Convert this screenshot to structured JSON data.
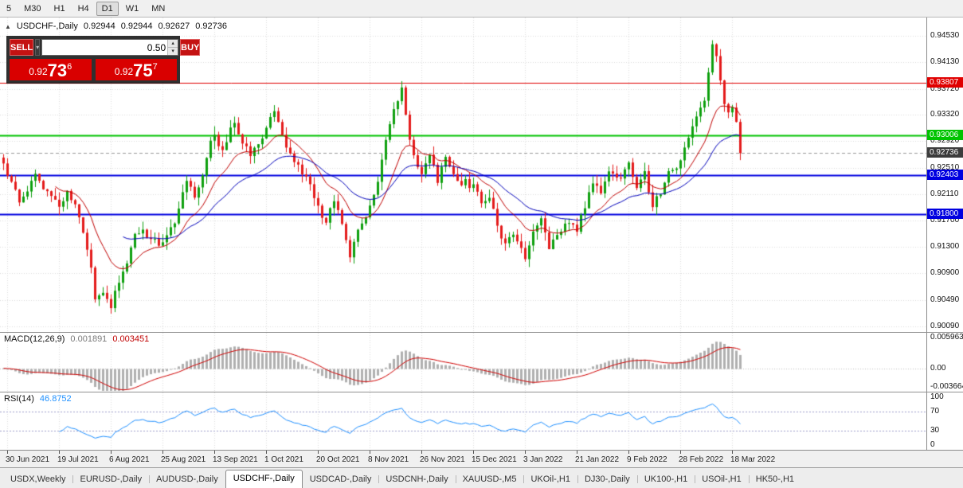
{
  "toolbar": {
    "items": [
      "5",
      "M30",
      "H1",
      "H4",
      "D1",
      "W1",
      "MN"
    ],
    "active": "D1"
  },
  "chart": {
    "collapse_icon": "▲",
    "symbol_title": "USDCHF-,Daily",
    "ohlc": {
      "open": "0.92944",
      "high": "0.92944",
      "low": "0.92627",
      "close": "0.92736"
    },
    "trade_panel": {
      "sell_label": "SELL",
      "buy_label": "BUY",
      "volume": "0.50",
      "sell_price": {
        "big": "0.92",
        "mid": "73",
        "sup": "6"
      },
      "buy_price": {
        "big": "0.92",
        "mid": "75",
        "sup": "7"
      }
    },
    "price_scale": [
      "0.94530",
      "0.94130",
      "0.93720",
      "0.93320",
      "0.92920",
      "0.92510",
      "0.92110",
      "0.91700",
      "0.91300",
      "0.90900",
      "0.90490",
      "0.90090"
    ],
    "levels": [
      {
        "price": 0.93807,
        "label": "0.93807",
        "color": "#e00000",
        "line_width": 1
      },
      {
        "price": 0.93006,
        "label": "0.93006",
        "color": "#00c400",
        "line_width": 2
      },
      {
        "price": 0.92403,
        "label": "0.92403",
        "color": "#0000e0",
        "line_width": 2
      },
      {
        "price": 0.918,
        "label": "0.91800",
        "color": "#0000e0",
        "line_width": 2
      }
    ],
    "bid_line": {
      "price": 0.92736,
      "label": "0.92736",
      "bg": "#3c3c3c"
    }
  },
  "macd": {
    "label": "MACD(12,26,9)",
    "main_value": "0.001891",
    "signal_value": "0.003451",
    "scale": [
      "0.005963",
      "0.00",
      "-0.003664"
    ]
  },
  "rsi": {
    "label": "RSI(14)",
    "value": "46.8752",
    "scale": [
      "100",
      "70",
      "30",
      "0"
    ]
  },
  "time_axis": {
    "labels": [
      "30 Jun 2021",
      "19 Jul 2021",
      "6 Aug 2021",
      "25 Aug 2021",
      "13 Sep 2021",
      "1 Oct 2021",
      "20 Oct 2021",
      "8 Nov 2021",
      "26 Nov 2021",
      "15 Dec 2021",
      "3 Jan 2022",
      "21 Jan 2022",
      "9 Feb 2022",
      "28 Feb 2022",
      "18 Mar 2022"
    ]
  },
  "tabs": [
    {
      "label": "USDX,Weekly",
      "active": false
    },
    {
      "label": "EURUSD-,Daily",
      "active": false
    },
    {
      "label": "AUDUSD-,Daily",
      "active": false
    },
    {
      "label": "USDCHF-,Daily",
      "active": true
    },
    {
      "label": "USDCAD-,Daily",
      "active": false
    },
    {
      "label": "USDCNH-,Daily",
      "active": false
    },
    {
      "label": "XAUUSD-,M5",
      "active": false
    },
    {
      "label": "UKOil-,H1",
      "active": false
    },
    {
      "label": "DJ30-,Daily",
      "active": false
    },
    {
      "label": "UK100-,H1",
      "active": false
    },
    {
      "label": "USOil-,H1",
      "active": false
    },
    {
      "label": "HK50-,H1",
      "active": false
    }
  ],
  "colors": {
    "bull": "#0fa00f",
    "bear": "#e41c1c",
    "grid": "#dcdcdc",
    "bid_line": "#9a9a9a",
    "macd_hist": "#b0b0b0",
    "macd_signal": "#d00000",
    "rsi_line": "#1E90FF",
    "rsi_level": "#a0a0cc",
    "accent_red": "#d90000"
  },
  "chart_data": {
    "type": "candlestick",
    "symbol": "USDCHF-,Daily",
    "candle_count": 186,
    "spacing": 5,
    "seed": 12345,
    "last_close": 0.92736,
    "price_range": [
      0.9,
      0.9481
    ],
    "noise": {
      "close": 0.0006,
      "wick": 0.0013
    },
    "tick_indices": [
      1,
      14,
      27,
      40,
      53,
      66,
      79,
      92,
      105,
      118,
      131,
      144,
      157,
      170,
      183
    ],
    "anchors": [
      [
        0,
        0.9252
      ],
      [
        2,
        0.923
      ],
      [
        4,
        0.9198
      ],
      [
        6,
        0.922
      ],
      [
        8,
        0.9236
      ],
      [
        11,
        0.921
      ],
      [
        14,
        0.919
      ],
      [
        16,
        0.9216
      ],
      [
        18,
        0.9192
      ],
      [
        20,
        0.915
      ],
      [
        22,
        0.9095
      ],
      [
        23,
        0.9048
      ],
      [
        25,
        0.9065
      ],
      [
        27,
        0.904
      ],
      [
        29,
        0.908
      ],
      [
        31,
        0.911
      ],
      [
        33,
        0.9145
      ],
      [
        35,
        0.916
      ],
      [
        37,
        0.914
      ],
      [
        40,
        0.9136
      ],
      [
        42,
        0.9155
      ],
      [
        44,
        0.9188
      ],
      [
        46,
        0.923
      ],
      [
        48,
        0.9206
      ],
      [
        50,
        0.9242
      ],
      [
        52,
        0.929
      ],
      [
        53,
        0.9304
      ],
      [
        55,
        0.9274
      ],
      [
        57,
        0.9308
      ],
      [
        58,
        0.9324
      ],
      [
        60,
        0.9292
      ],
      [
        62,
        0.927
      ],
      [
        64,
        0.9288
      ],
      [
        66,
        0.9314
      ],
      [
        68,
        0.9332
      ],
      [
        70,
        0.9304
      ],
      [
        72,
        0.9272
      ],
      [
        74,
        0.9256
      ],
      [
        76,
        0.9234
      ],
      [
        78,
        0.9208
      ],
      [
        79,
        0.919
      ],
      [
        81,
        0.9164
      ],
      [
        83,
        0.9204
      ],
      [
        85,
        0.916
      ],
      [
        87,
        0.912
      ],
      [
        89,
        0.9154
      ],
      [
        91,
        0.9174
      ],
      [
        92,
        0.9188
      ],
      [
        94,
        0.9224
      ],
      [
        96,
        0.9294
      ],
      [
        98,
        0.9344
      ],
      [
        100,
        0.9368
      ],
      [
        102,
        0.9298
      ],
      [
        104,
        0.9254
      ],
      [
        105,
        0.9244
      ],
      [
        107,
        0.9274
      ],
      [
        109,
        0.923
      ],
      [
        111,
        0.9264
      ],
      [
        113,
        0.924
      ],
      [
        115,
        0.923
      ],
      [
        118,
        0.9224
      ],
      [
        120,
        0.9194
      ],
      [
        122,
        0.921
      ],
      [
        124,
        0.9164
      ],
      [
        126,
        0.9134
      ],
      [
        128,
        0.9154
      ],
      [
        131,
        0.9114
      ],
      [
        133,
        0.9148
      ],
      [
        135,
        0.917
      ],
      [
        137,
        0.9128
      ],
      [
        139,
        0.9144
      ],
      [
        141,
        0.9164
      ],
      [
        144,
        0.9158
      ],
      [
        146,
        0.919
      ],
      [
        148,
        0.923
      ],
      [
        150,
        0.9218
      ],
      [
        152,
        0.925
      ],
      [
        154,
        0.9234
      ],
      [
        157,
        0.9254
      ],
      [
        159,
        0.922
      ],
      [
        161,
        0.9244
      ],
      [
        163,
        0.919
      ],
      [
        165,
        0.9214
      ],
      [
        167,
        0.9244
      ],
      [
        170,
        0.926
      ],
      [
        172,
        0.9294
      ],
      [
        174,
        0.9326
      ],
      [
        176,
        0.9358
      ],
      [
        177,
        0.9394
      ],
      [
        178,
        0.9444
      ],
      [
        179,
        0.9426
      ],
      [
        180,
        0.9384
      ],
      [
        181,
        0.9354
      ],
      [
        182,
        0.9334
      ],
      [
        183,
        0.9346
      ],
      [
        184,
        0.9316
      ],
      [
        185,
        0.92736
      ]
    ],
    "overlays": {
      "ma_fast": {
        "period": 13,
        "color": "#c00000"
      },
      "ma_slow": {
        "period": 30,
        "color": "#0000bb"
      }
    },
    "indicators": {
      "macd": {
        "fast": 12,
        "slow": 26,
        "signal": 9,
        "scale_max": 0.005963,
        "scale_min": -0.003664
      },
      "rsi": {
        "period": 14,
        "levels": [
          70,
          30
        ]
      }
    }
  }
}
